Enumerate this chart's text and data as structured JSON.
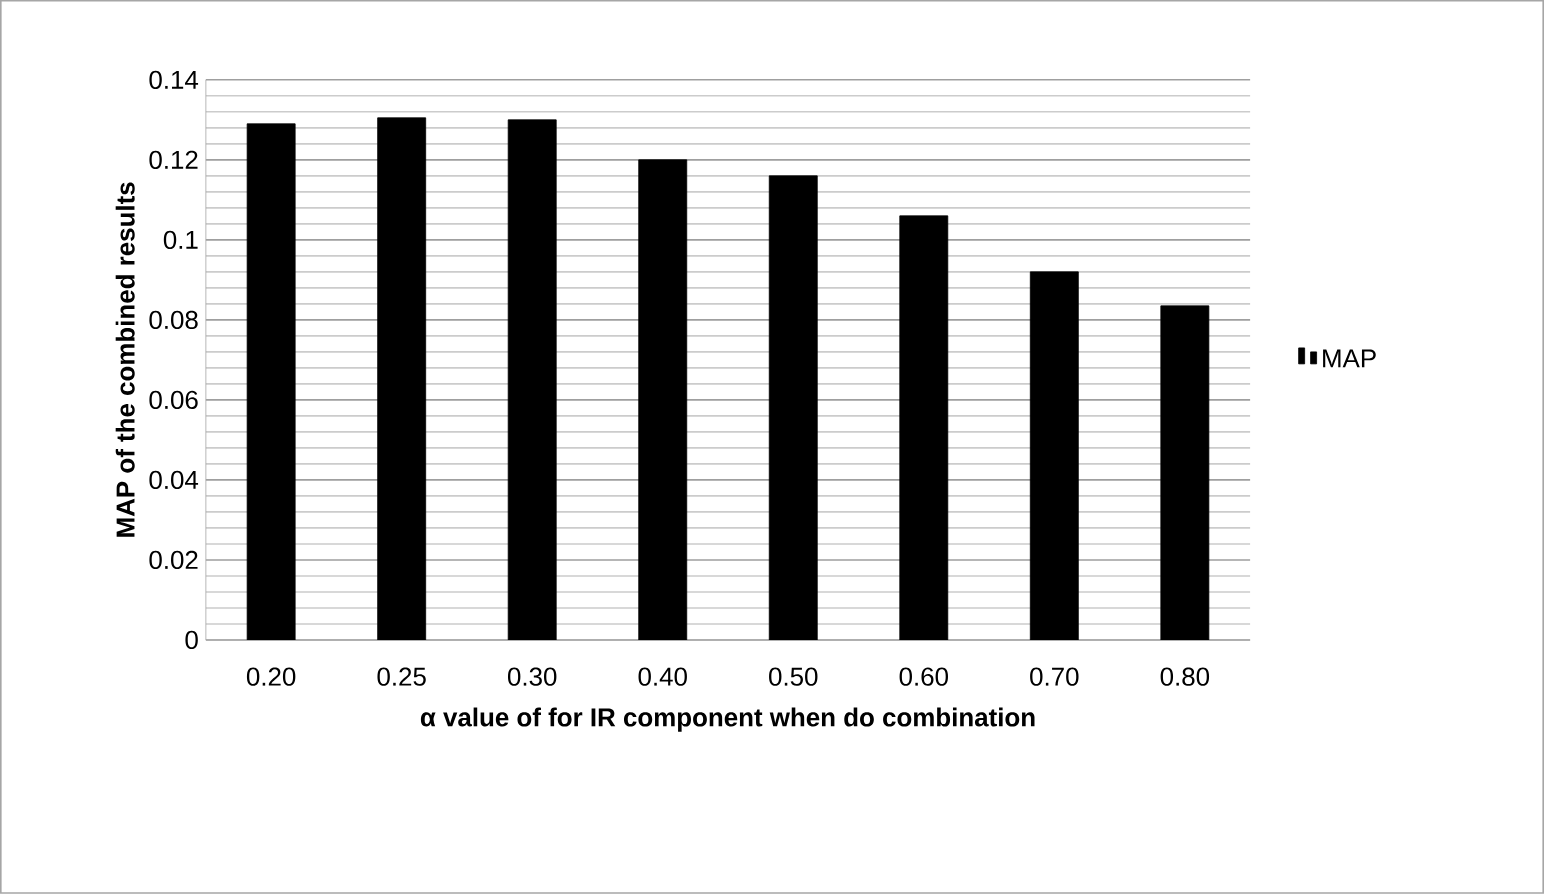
{
  "chart_data": {
    "type": "bar",
    "xlabel": "α value of for IR component when do combination",
    "ylabel": "MAP of the combined results",
    "categories": [
      "0.20",
      "0.25",
      "0.30",
      "0.40",
      "0.50",
      "0.60",
      "0.70",
      "0.80"
    ],
    "series": [
      {
        "name": "MAP",
        "color": "#000000",
        "values": [
          0.129,
          0.1305,
          0.13,
          0.12,
          0.116,
          0.106,
          0.092,
          0.0835
        ]
      }
    ],
    "ylim": [
      0,
      0.14
    ],
    "yticks": [
      0,
      0.02,
      0.04,
      0.06,
      0.08,
      0.1,
      0.12,
      0.14
    ],
    "grid": "y",
    "legend": "right"
  }
}
